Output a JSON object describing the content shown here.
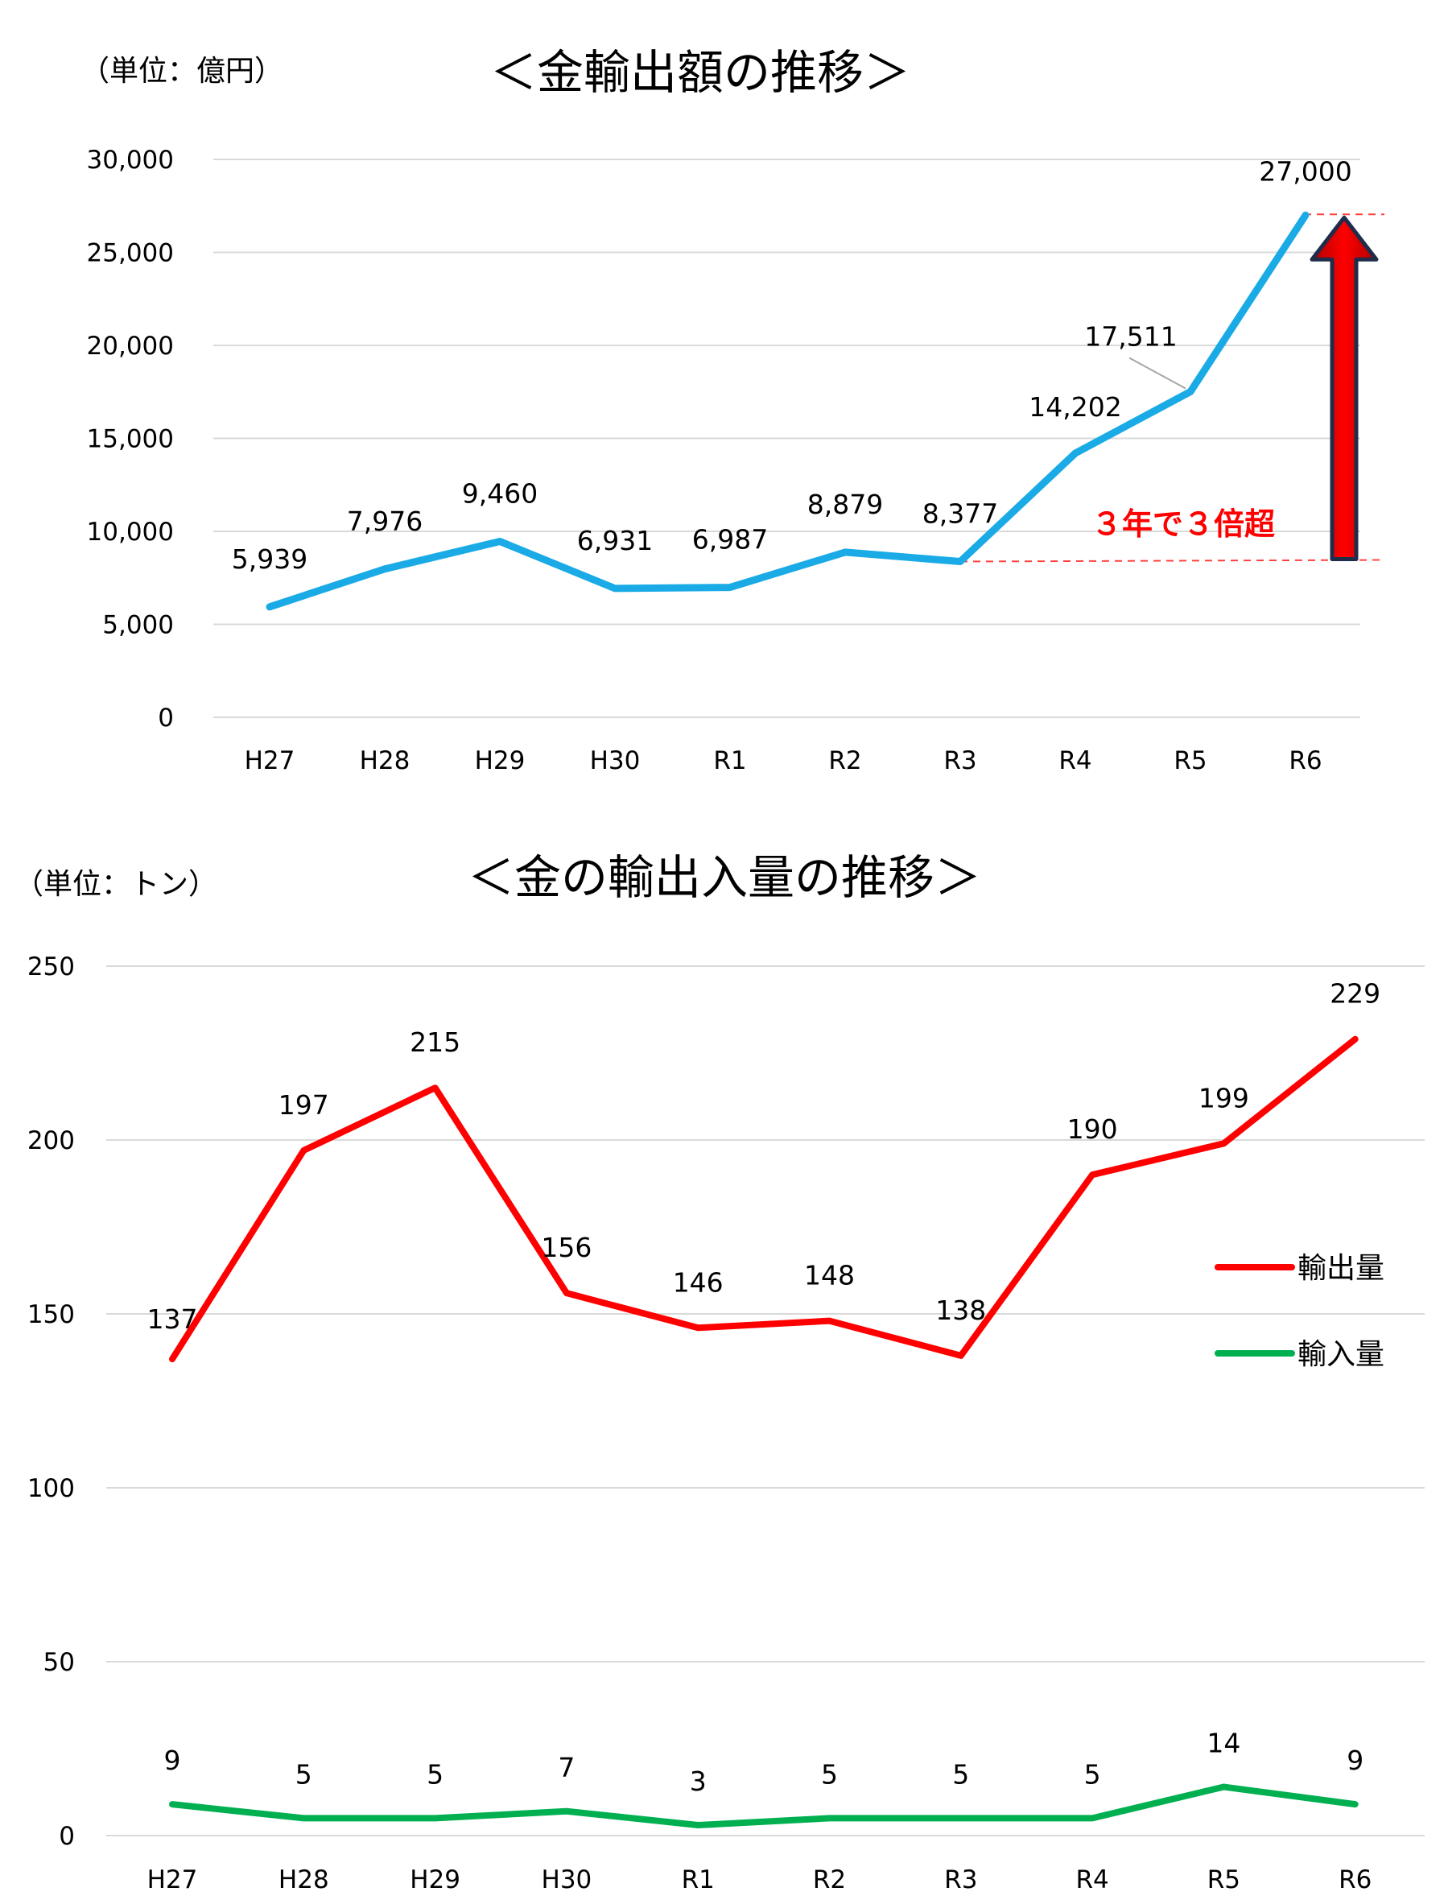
{
  "chart_data": [
    {
      "type": "line",
      "title": "＜金輸出額の推移＞",
      "unit_label": "（単位：億円）",
      "categories": [
        "H27",
        "H28",
        "H29",
        "H30",
        "R1",
        "R2",
        "R3",
        "R4",
        "R5",
        "R6"
      ],
      "y_ticks": [
        "30,000",
        "25,000",
        "20,000",
        "15,000",
        "10,000",
        "5,000",
        "0"
      ],
      "ylim": [
        0,
        30000
      ],
      "grid": true,
      "series": [
        {
          "color": "#1aabe6",
          "values": [
            5939,
            7976,
            9460,
            6931,
            6987,
            8879,
            8377,
            14202,
            17511,
            27000
          ],
          "labels": [
            "5,939",
            "7,976",
            "9,460",
            "6,931",
            "6,987",
            "8,879",
            "8,377",
            "14,202",
            "17,511",
            "27,000"
          ]
        }
      ],
      "annotation": {
        "text": "３年で３倍超",
        "color": "#ff0000",
        "arrow": "from R3 value up to R6 value"
      }
    },
    {
      "type": "line",
      "title": "＜金の輸出入量の推移＞",
      "unit_label": "（単位：トン）",
      "categories": [
        "H27",
        "H28",
        "H29",
        "H30",
        "R1",
        "R2",
        "R3",
        "R4",
        "R5",
        "R6"
      ],
      "y_ticks": [
        "250",
        "200",
        "150",
        "100",
        "50",
        "0"
      ],
      "ylim": [
        0,
        250
      ],
      "grid": true,
      "legend_position": "right",
      "series": [
        {
          "name": "輸出量",
          "color": "#ff0000",
          "values": [
            137,
            197,
            215,
            156,
            146,
            148,
            138,
            190,
            199,
            229
          ],
          "labels": [
            "137",
            "197",
            "215",
            "156",
            "146",
            "148",
            "138",
            "190",
            "199",
            "229"
          ]
        },
        {
          "name": "輸入量",
          "color": "#00b050",
          "values": [
            9,
            5,
            5,
            7,
            3,
            5,
            5,
            5,
            14,
            9
          ],
          "labels": [
            "9",
            "5",
            "5",
            "7",
            "3",
            "5",
            "5",
            "5",
            "14",
            "9"
          ]
        }
      ]
    }
  ]
}
